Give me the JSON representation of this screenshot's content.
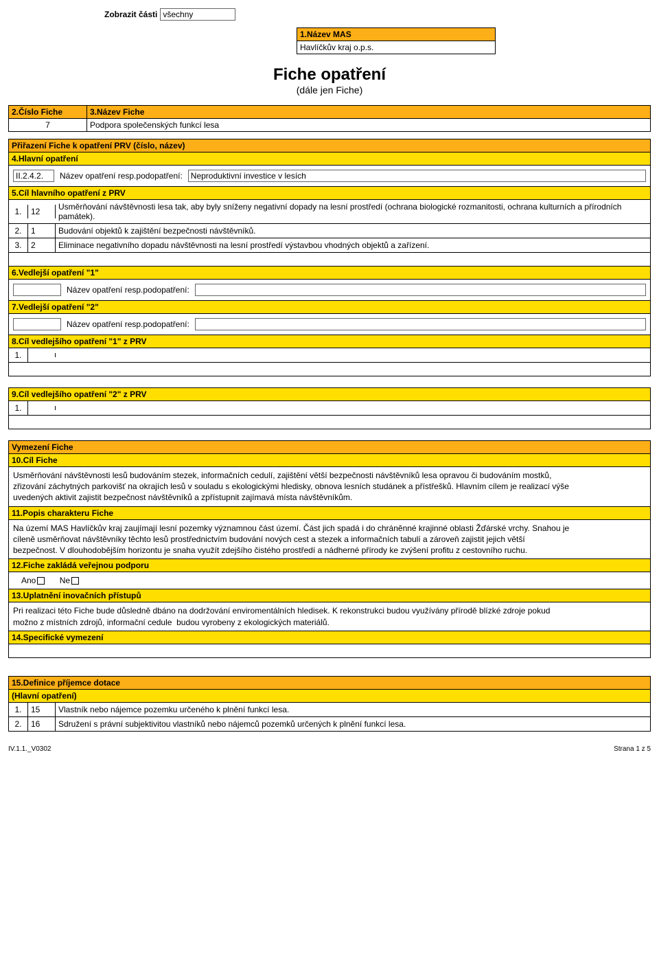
{
  "colors": {
    "orange": "#fcaf17",
    "yellow": "#ffde00",
    "border": "#000000",
    "bg": "#ffffff"
  },
  "top": {
    "show_parts_label": "Zobrazit části",
    "show_parts_value": "všechny"
  },
  "box1": {
    "header": "1.Název MAS",
    "value": "Havlíčkův kraj o.p.s."
  },
  "title": "Fiche opatření",
  "subtitle": "(dále jen Fiche)",
  "box2": {
    "header": "2.Číslo Fiche",
    "value": "7"
  },
  "box3": {
    "header": "3.Název Fiche",
    "value": "Podpora společenských funkcí lesa"
  },
  "section_prv": {
    "header": "Přiřazení Fiche k opatření PRV (číslo, název)"
  },
  "section4": {
    "header": "4.Hlavní opatření",
    "code": "II.2.4.2.",
    "label": "Název opatření resp.podopatření:",
    "value": "Neproduktivní investice v lesích"
  },
  "section5": {
    "header": "5.Cíl hlavního opatření z PRV",
    "rows": [
      {
        "n": "1.",
        "code": "12",
        "text": "Usměrňování návštěvnosti lesa tak, aby byly sníženy negativní dopady na lesní prostředí (ochrana biologické rozmanitosti, ochrana kulturních a přírodních památek)."
      },
      {
        "n": "2.",
        "code": "1",
        "text": "Budování objektů k zajištění bezpečnosti návštěvníků."
      },
      {
        "n": "3.",
        "code": "2",
        "text": "Eliminace negativního dopadu návštěvnosti na lesní prostředí výstavbou vhodných objektů a zařízení."
      }
    ]
  },
  "section6": {
    "header": "6.Vedlejší opatření \"1\"",
    "label": "Název opatření resp.podopatření:"
  },
  "section7": {
    "header": "7.Vedlejší opatření \"2\"",
    "label": "Název opatření resp.podopatření:"
  },
  "section8": {
    "header": "8.Cíl vedlejšího opatření \"1\" z PRV",
    "row_n": "1."
  },
  "section9": {
    "header": "9.Cíl vedlejšího opatření \"2\" z PRV",
    "row_n": "1."
  },
  "vymezeni": {
    "header": "Vymezení Fiche",
    "s10": {
      "header": "10.Cíl Fiche",
      "text": "Usměrňování návštěvnosti lesů budováním stezek, informačních cedulí, zajištění větší bezpečnosti návštěvníků lesa opravou či budováním mostků,\nzřizování záchytných parkovišť na okrajích lesů v souladu s ekologickými hledisky, obnova lesních studánek a přístřešků. Hlavním cílem je realizací výše\nuvedených aktivit zajistit bezpečnost návštěvníků a zpřístupnit zajímavá místa návštěvníkům."
    },
    "s11": {
      "header": "11.Popis charakteru Fiche",
      "text": "Na území MAS Havlíčkův kraj zaujímají lesní pozemky významnou část území. Část jich spadá i do chráněnné krajinné oblasti Žďárské vrchy. Snahou je\ncíleně usměrňovat návštěvníky těchto lesů prostřednictvím budování nových cest a stezek a informačních tabulí a zároveň zajistit jejich větší\nbezpečnost. V dlouhodobějším horizontu je snaha využít zdejšího čistého prostředí a nádherné přírody ke zvýšení profitu z cestovního ruchu."
    },
    "s12": {
      "header": "12.Fiche zakládá veřejnou podporu",
      "yes": "Ano",
      "no": "Ne"
    },
    "s13": {
      "header": "13.Uplatnění inovačních přístupů",
      "text": "Pri realizaci této Fiche bude důsledně dbáno na dodržování enviromentálních hledisek. K rekonstrukci budou využívány přírodě blízké zdroje pokud\nmožno z místních zdrojů, informační cedule  budou vyrobeny z ekologických materiálů."
    },
    "s14": {
      "header": "14.Specifické vymezení"
    }
  },
  "section15": {
    "header": "15.Definice příjemce dotace",
    "sub": "(Hlavní opatření)",
    "rows": [
      {
        "n": "1.",
        "code": "15",
        "text": "Vlastník nebo nájemce pozemku určeného k plnění funkcí lesa."
      },
      {
        "n": "2.",
        "code": "16",
        "text": "Sdružení s právní subjektivitou vlastníků nebo nájemců pozemků určených k plnění funkcí lesa."
      }
    ]
  },
  "footer": {
    "left": "IV.1.1._V0302",
    "right": "Strana 1 z 5"
  }
}
